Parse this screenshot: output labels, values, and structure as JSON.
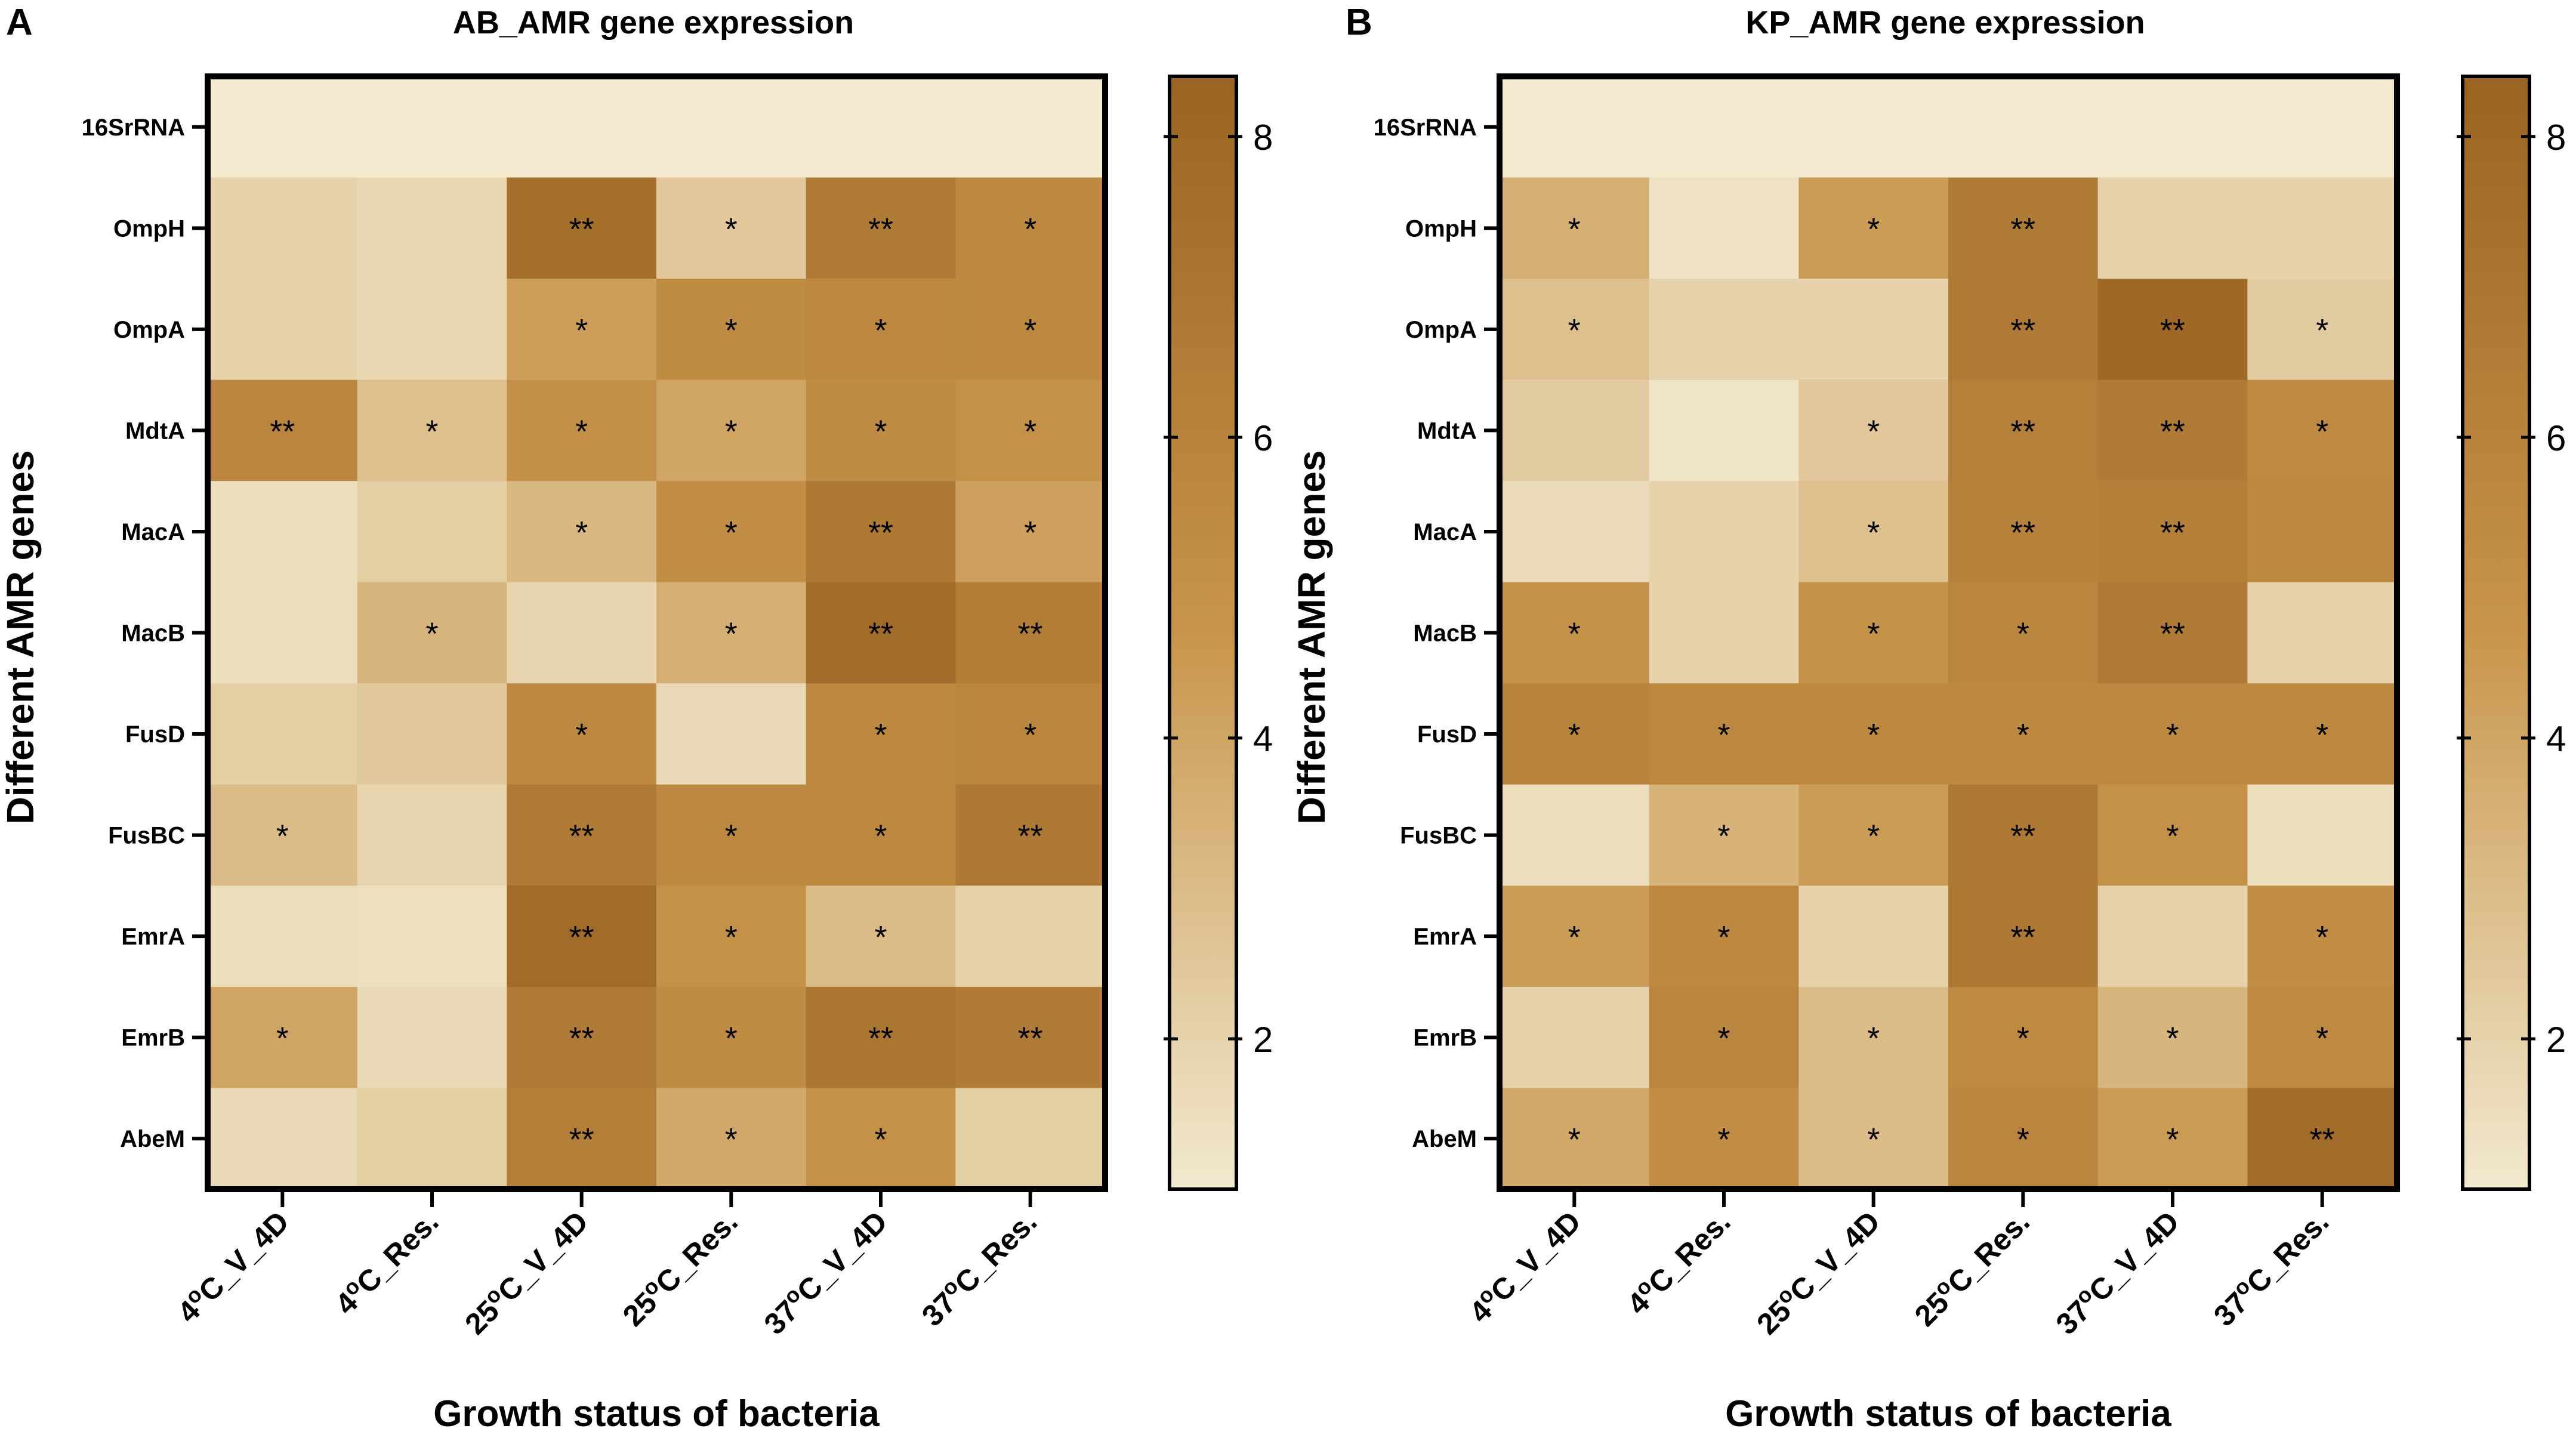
{
  "figure": {
    "background": "#ffffff"
  },
  "colors": {
    "low": "#f2e9cf",
    "mid": "#c8954b",
    "high": "#9a6322",
    "border": "#000000",
    "text": "#000000"
  },
  "chart_data": [
    {
      "panel_label": "A",
      "type": "heatmap",
      "title": "AB_AMR gene expression",
      "xlabel": "Growth status of bacteria",
      "ylabel": "Different AMR genes",
      "x_categories": [
        "4oC_V_4D",
        "4oC_Res.",
        "25oC_V_4D",
        "25oC_Res.",
        "37oC_V_4D",
        "37oC_Res."
      ],
      "y_categories": [
        "16SrRNA",
        "OmpH",
        "OmpA",
        "MdtA",
        "MacA",
        "MacB",
        "FusD",
        "FusBC",
        "EmrA",
        "EmrB",
        "AbeM"
      ],
      "values": [
        [
          1.0,
          1.0,
          1.0,
          1.0,
          1.0,
          1.0
        ],
        [
          2.0,
          1.8,
          7.5,
          2.5,
          6.6,
          5.6
        ],
        [
          2.0,
          1.8,
          4.3,
          5.4,
          5.6,
          5.6
        ],
        [
          5.8,
          2.8,
          5.1,
          4.0,
          5.4,
          5.0
        ],
        [
          1.5,
          2.2,
          3.2,
          5.2,
          6.8,
          4.2
        ],
        [
          1.5,
          3.3,
          1.9,
          3.6,
          7.8,
          6.5
        ],
        [
          2.2,
          2.4,
          5.6,
          1.7,
          5.6,
          5.8
        ],
        [
          3.0,
          1.9,
          6.6,
          5.6,
          5.6,
          6.8
        ],
        [
          1.5,
          1.4,
          7.8,
          5.0,
          3.0,
          2.0
        ],
        [
          4.0,
          1.7,
          6.6,
          5.4,
          7.0,
          6.6
        ],
        [
          1.7,
          2.2,
          6.3,
          3.8,
          5.0,
          2.2
        ]
      ],
      "annotations": [
        [
          "",
          "",
          "",
          "",
          "",
          ""
        ],
        [
          "",
          "",
          "**",
          "*",
          "**",
          "*"
        ],
        [
          "",
          "",
          "*",
          "*",
          "*",
          "*"
        ],
        [
          "**",
          "*",
          "*",
          "*",
          "*",
          "*"
        ],
        [
          "",
          "",
          "*",
          "*",
          "**",
          "*"
        ],
        [
          "",
          "*",
          "",
          "*",
          "**",
          "**"
        ],
        [
          "",
          "",
          "*",
          "",
          "*",
          "*"
        ],
        [
          "*",
          "",
          "**",
          "*",
          "*",
          "**"
        ],
        [
          "",
          "",
          "**",
          "*",
          "*",
          ""
        ],
        [
          "*",
          "",
          "**",
          "*",
          "**",
          "**"
        ],
        [
          "",
          "",
          "**",
          "*",
          "*",
          ""
        ]
      ],
      "colorbar": {
        "min": 1,
        "max": 8.4,
        "ticks": [
          2,
          4,
          6,
          8
        ],
        "tick_labels": [
          "2",
          "4",
          "6",
          "8"
        ]
      }
    },
    {
      "panel_label": "B",
      "type": "heatmap",
      "title": "KP_AMR gene expression",
      "xlabel": "Growth status of bacteria",
      "ylabel": "Different AMR genes",
      "x_categories": [
        "4oC_V_4D",
        "4oC_Res.",
        "25oC_V_4D",
        "25oC_Res.",
        "37oC_V_4D",
        "37oC_Res."
      ],
      "y_categories": [
        "16SrRNA",
        "OmpH",
        "OmpA",
        "MdtA",
        "MacA",
        "MacB",
        "FusD",
        "FusBC",
        "EmrA",
        "EmrB",
        "AbeM"
      ],
      "values": [
        [
          1.0,
          1.0,
          1.0,
          1.0,
          1.0,
          1.0
        ],
        [
          3.6,
          1.3,
          4.4,
          6.6,
          2.0,
          2.0
        ],
        [
          2.8,
          2.0,
          2.0,
          6.6,
          8.0,
          2.3
        ],
        [
          2.3,
          1.2,
          2.5,
          6.2,
          6.6,
          5.5
        ],
        [
          1.6,
          2.0,
          2.8,
          6.1,
          6.3,
          5.6
        ],
        [
          5.0,
          2.0,
          5.0,
          5.8,
          6.6,
          2.0
        ],
        [
          6.0,
          5.6,
          5.6,
          5.6,
          5.6,
          5.6
        ],
        [
          1.5,
          3.4,
          4.4,
          6.8,
          5.0,
          1.5
        ],
        [
          4.4,
          5.6,
          2.0,
          6.8,
          2.0,
          5.2
        ],
        [
          2.0,
          5.8,
          3.0,
          5.5,
          3.3,
          5.5
        ],
        [
          3.8,
          5.2,
          3.0,
          5.8,
          4.4,
          7.8
        ]
      ],
      "annotations": [
        [
          "",
          "",
          "",
          "",
          "",
          ""
        ],
        [
          "*",
          "",
          "*",
          "**",
          "",
          ""
        ],
        [
          "*",
          "",
          "",
          "**",
          "**",
          "*"
        ],
        [
          "",
          "",
          "*",
          "**",
          "**",
          "*"
        ],
        [
          "",
          "",
          "*",
          "**",
          "**",
          ""
        ],
        [
          "*",
          "",
          "*",
          "*",
          "**",
          ""
        ],
        [
          "*",
          "*",
          "*",
          "*",
          "*",
          "*"
        ],
        [
          "",
          "*",
          "*",
          "**",
          "*",
          ""
        ],
        [
          "*",
          "*",
          "",
          "**",
          "",
          "*"
        ],
        [
          "",
          "*",
          "*",
          "*",
          "*",
          "*"
        ],
        [
          "*",
          "*",
          "*",
          "*",
          "*",
          "**"
        ]
      ],
      "colorbar": {
        "min": 1,
        "max": 8.4,
        "ticks": [
          2,
          4,
          6,
          8
        ],
        "tick_labels": [
          "2",
          "4",
          "6",
          "8"
        ]
      }
    }
  ]
}
